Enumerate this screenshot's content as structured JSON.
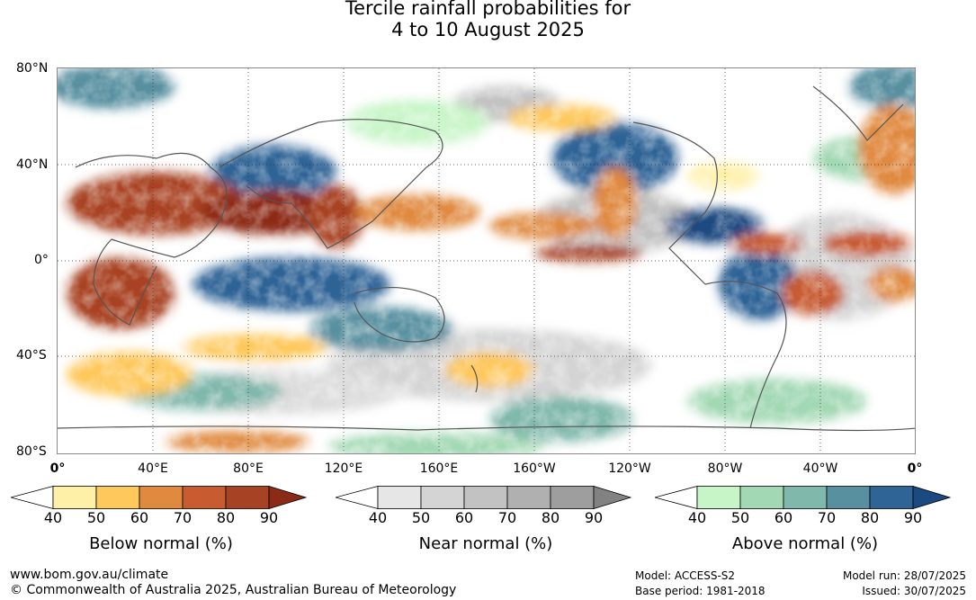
{
  "title": {
    "line1": "Tercile rainfall probabilities for",
    "line2": "4 to 10 August 2025"
  },
  "axes": {
    "latitude_labels": [
      "80°N",
      "40°N",
      "0°",
      "40°S",
      "80°S"
    ],
    "longitude_labels": [
      "0°",
      "40°E",
      "80°E",
      "120°E",
      "160°E",
      "160°W",
      "120°W",
      "80°W",
      "40°W",
      "0°"
    ],
    "grid": true
  },
  "colorbars": [
    {
      "label": "Below normal (%)",
      "ticks": [
        "40",
        "50",
        "60",
        "70",
        "80",
        "90"
      ],
      "colors": [
        "#ffffff",
        "#fff0a8",
        "#fec85c",
        "#e08a40",
        "#c85c30",
        "#a84224",
        "#8c2a18"
      ]
    },
    {
      "label": "Near normal (%)",
      "ticks": [
        "40",
        "50",
        "60",
        "70",
        "80",
        "90"
      ],
      "colors": [
        "#ffffff",
        "#e6e6e6",
        "#d4d4d4",
        "#c2c2c2",
        "#b0b0b0",
        "#9e9e9e",
        "#828282"
      ]
    },
    {
      "label": "Above normal (%)",
      "ticks": [
        "40",
        "50",
        "60",
        "70",
        "80",
        "90"
      ],
      "colors": [
        "#ffffff",
        "#c8f5c8",
        "#a2d8b4",
        "#80b8ac",
        "#5890a0",
        "#2f6496",
        "#1a4a80"
      ]
    }
  ],
  "footer": {
    "website": "www.bom.gov.au/climate",
    "copyright": "© Commonwealth of Australia 2025, Australian Bureau of Meteorology",
    "model": "Model: ACCESS-S2",
    "base_period": "Base period: 1981-2018",
    "model_run": "Model run: 28/07/2025",
    "issued": "Issued: 30/07/2025"
  }
}
